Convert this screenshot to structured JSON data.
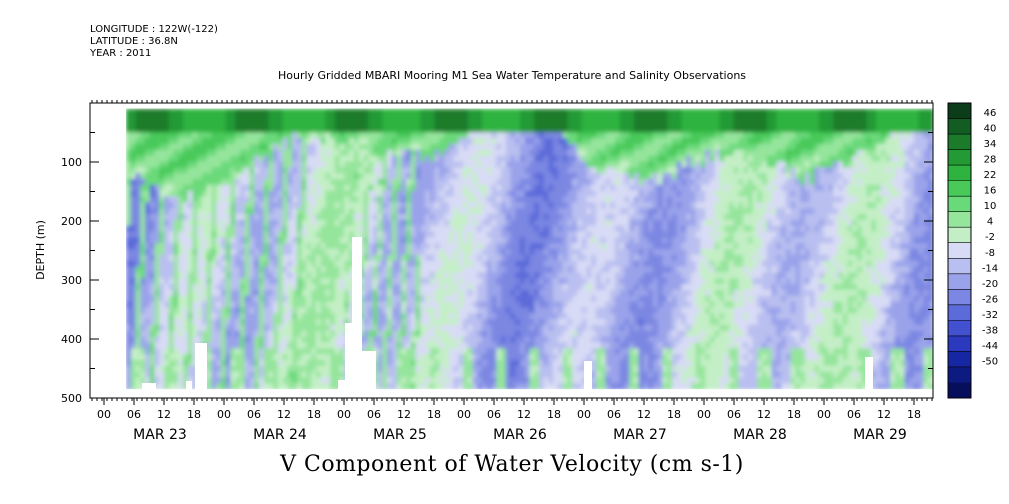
{
  "meta": {
    "longitude": "LONGITUDE : 122W(-122)",
    "latitude": "LATITUDE : 36.8N",
    "year": "YEAR : 2011"
  },
  "title": "Hourly Gridded MBARI Mooring M1 Sea Water Temperature and Salinity Observations",
  "variable_label": "V Component of Water Velocity (cm s-1)",
  "chart_data": {
    "type": "heatmap",
    "title": "Hourly Gridded MBARI Mooring M1 Sea Water Temperature and Salinity Observations",
    "xlabel": "",
    "ylabel": "DEPTH (m)",
    "colorbar_label": "V Component of Water Velocity (cm s-1)",
    "x_hour_ticks": [
      "00",
      "06",
      "12",
      "18",
      "00",
      "06",
      "12",
      "18",
      "00",
      "06",
      "12",
      "18",
      "00",
      "06",
      "12",
      "18",
      "00",
      "06",
      "12",
      "18",
      "00",
      "06",
      "12",
      "18",
      "00",
      "06",
      "12",
      "18"
    ],
    "x_day_labels": [
      "MAR 23",
      "MAR 24",
      "MAR 25",
      "MAR 26",
      "MAR 27",
      "MAR 28",
      "MAR 29"
    ],
    "y_ticks": [
      100,
      200,
      300,
      400,
      500
    ],
    "ylim": [
      500,
      0
    ],
    "colorbar_levels": [
      46,
      40,
      34,
      28,
      22,
      16,
      10,
      4,
      -2,
      -8,
      -14,
      -20,
      -26,
      -32,
      -38,
      -44,
      -50
    ],
    "colorbar_colors": [
      "#0c3d1a",
      "#135c22",
      "#1b7b2a",
      "#239a34",
      "#2fb340",
      "#48c95a",
      "#6ad97a",
      "#95e59c",
      "#c4efc6",
      "#d8dbf5",
      "#b9bff0",
      "#9aa3ea",
      "#7b87e2",
      "#5c6bda",
      "#4151cf",
      "#2a39bd",
      "#1727a3",
      "#0d1a82",
      "#070f5c"
    ],
    "data_extent": {
      "time_start": "MAR 22 18",
      "time_end": "MAR 29 23",
      "depth_top": 10,
      "depth_bottom": 485
    },
    "notes_grid": "surface layer positive (green, ~10-40), deeper layer negative (blue, ~-5 to -30)"
  }
}
